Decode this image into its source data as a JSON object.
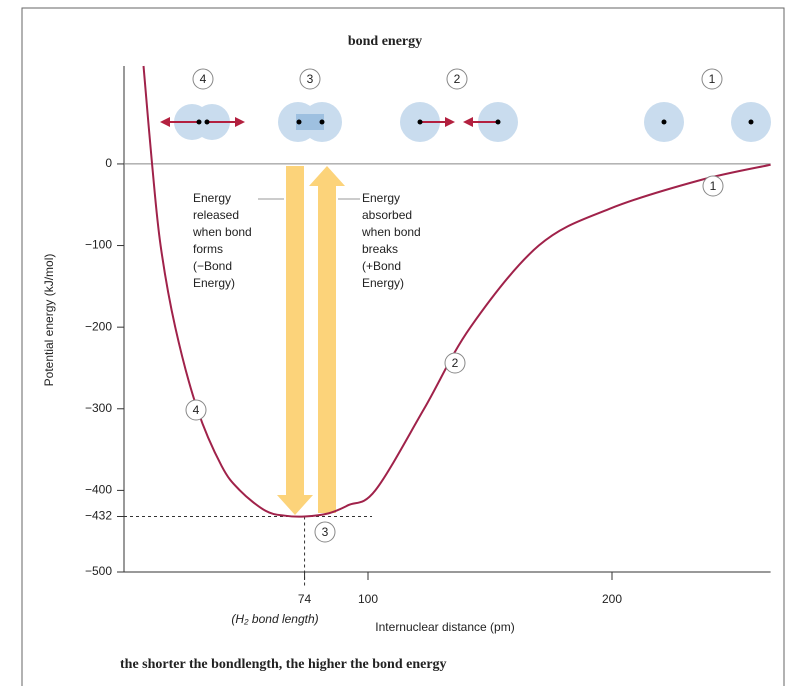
{
  "chart_data": {
    "type": "line",
    "title": "bond energy",
    "caption": "the shorter the bondlength, the higher the bond energy",
    "y_label": "Potential energy (kJ/mol)",
    "x_label": "Internuclear distance (pm)",
    "bond_length_label": "(H₂ bond length)",
    "x": [
      8,
      11.5,
      15,
      21,
      30,
      40,
      47.5,
      58,
      66,
      74,
      84,
      92,
      103,
      123,
      142,
      170,
      199,
      236,
      265
    ],
    "values": [
      120,
      0,
      -100,
      -200,
      -300,
      -370,
      -400,
      -425,
      -431,
      -432,
      -428,
      -418,
      -400,
      -300,
      -200,
      -100,
      -55,
      -20,
      -1
    ],
    "color": "#a0224a",
    "xlim": [
      0,
      265
    ],
    "ylim": [
      -500,
      120
    ],
    "xticks": [
      74,
      100,
      200
    ],
    "yticks": [
      0,
      {
        "value": -100,
        "label": "−100"
      },
      {
        "value": -200,
        "label": "−200"
      },
      {
        "value": -300,
        "label": "−300"
      },
      {
        "value": -400,
        "label": "−400"
      },
      {
        "value": -432,
        "label": "−432"
      },
      {
        "value": -500,
        "label": "−500"
      }
    ],
    "released_text": [
      "Energy",
      "released",
      "when bond",
      "forms",
      "(−Bond",
      "Energy)"
    ],
    "absorbed_text": [
      "Energy",
      "absorbed",
      "when bond",
      "breaks",
      "(+Bond",
      "Energy)"
    ],
    "top_markers": [
      "4",
      "3",
      "2",
      "1"
    ],
    "curve_markers": [
      "1",
      "2",
      "3",
      "4"
    ]
  }
}
